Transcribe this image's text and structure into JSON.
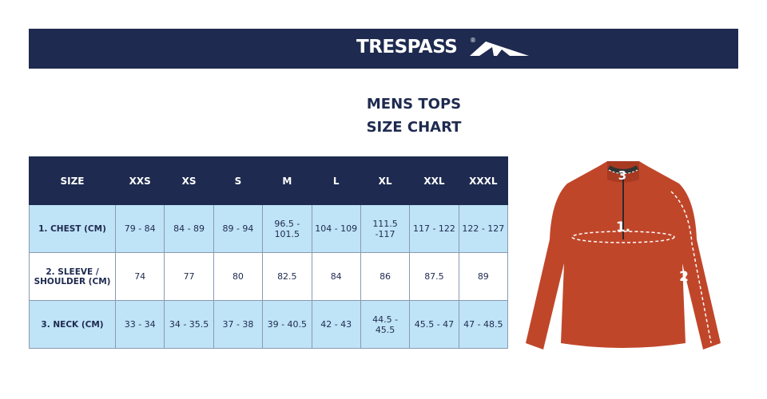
{
  "header": {
    "brand": "TRESPASS",
    "mark": "®"
  },
  "title": {
    "line1": "MENS TOPS",
    "line2": "SIZE CHART"
  },
  "table": {
    "columns": [
      "SIZE",
      "XXS",
      "XS",
      "S",
      "M",
      "L",
      "XL",
      "XXL",
      "XXXL"
    ],
    "rows": [
      [
        "1. CHEST (CM)",
        "79 - 84",
        "84 - 89",
        "89 - 94",
        "96.5 - 101.5",
        "104 - 109",
        "111.5 -117",
        "117 - 122",
        "122 - 127"
      ],
      [
        "2. SLEEVE / SHOULDER (CM)",
        "74",
        "77",
        "80",
        "82.5",
        "84",
        "86",
        "87.5",
        "89"
      ],
      [
        "3. NECK (CM)",
        "33 - 34",
        "34 - 35.5",
        "37 - 38",
        "39 - 40.5",
        "42 - 43",
        "44.5 - 45.5",
        "45.5 - 47",
        "47 - 48.5"
      ]
    ]
  },
  "diagram": {
    "labels": [
      "1.",
      "2",
      "3"
    ]
  }
}
